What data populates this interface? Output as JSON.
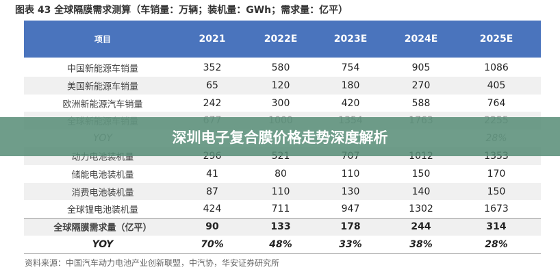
{
  "title": "图表 43 全球隔膜需求测算（车销量：万辆；装机量：GWh；需求量：亿平）",
  "table": {
    "header": [
      "项目",
      "2021",
      "2022E",
      "2023E",
      "2024E",
      "2025E"
    ],
    "rows": [
      [
        "中国新能源车销量",
        352,
        580,
        754,
        905,
        1086
      ],
      [
        "美国新能源车销量",
        65,
        120,
        180,
        270,
        405
      ],
      [
        "欧洲新能源汽车销量",
        242,
        300,
        420,
        588,
        764
      ],
      [
        "全球新能源车销量",
        677,
        1000,
        1354,
        1763,
        2255
      ],
      [
        "YOY",
        null,
        null,
        null,
        null,
        "28%"
      ],
      [
        "动力电池装机量",
        296,
        521,
        707,
        1012,
        1353
      ],
      [
        "储能电池装机量",
        41,
        80,
        110,
        150,
        170
      ],
      [
        "消费电池装机量",
        87,
        110,
        130,
        140,
        150
      ],
      [
        "全球锂电池装机量",
        424,
        711,
        947,
        1302,
        1673
      ],
      [
        "全球隔膜需求量（亿平）",
        90,
        133,
        178,
        244,
        314
      ],
      [
        "YOY",
        "70%",
        "48%",
        "33%",
        "38%",
        "28%"
      ]
    ]
  },
  "source": "资料来源：中国汽车动力电池产业创新联盟，中汽协，华安证券研究所",
  "banner": "深圳电子复合膜价格走势深度解析"
}
